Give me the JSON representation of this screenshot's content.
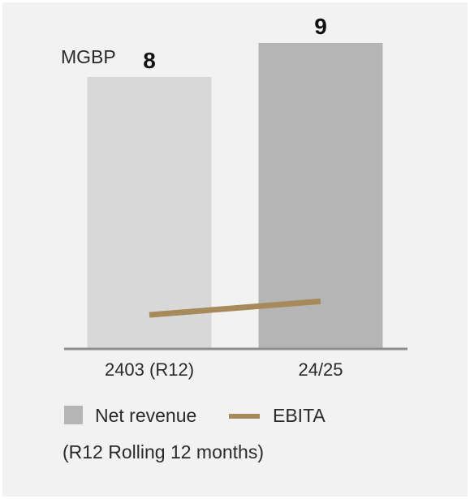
{
  "chart_data": {
    "type": "bar",
    "unit_label": "MGBP",
    "categories": [
      "2403 (R12)",
      "24/25"
    ],
    "series": [
      {
        "name": "Net revenue",
        "type": "bar",
        "values": [
          8,
          9
        ],
        "value_labels": [
          "8",
          "9"
        ],
        "colors": [
          "#d8d8d8",
          "#b5b5b5"
        ]
      },
      {
        "name": "EBITA",
        "type": "line",
        "values": [
          1,
          1.4
        ],
        "color": "#a68a5b"
      }
    ],
    "ylim": [
      0,
      9.5
    ],
    "grid": false,
    "legend_position": "bottom",
    "footnote": "(R12 Rolling 12 months)"
  }
}
